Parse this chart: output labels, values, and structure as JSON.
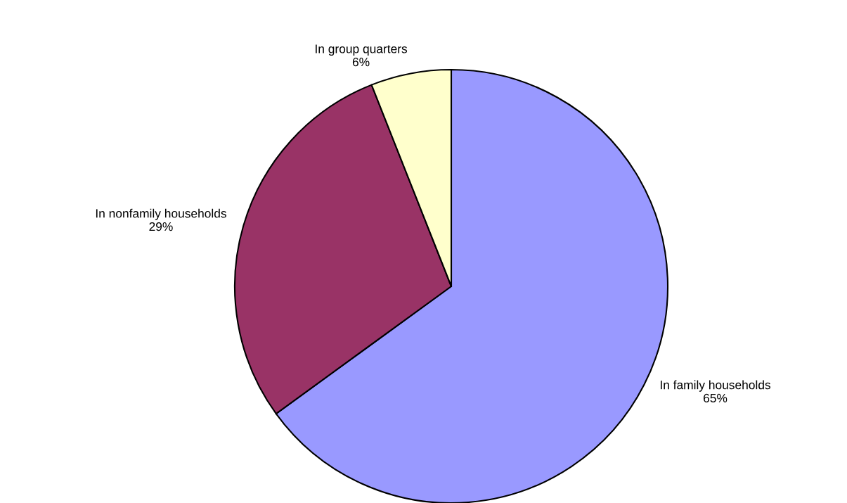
{
  "chart_data": {
    "type": "pie",
    "categories": [
      "In family households",
      "In nonfamily households",
      "In group quarters"
    ],
    "values": [
      65,
      29,
      6
    ],
    "value_labels": [
      "65%",
      "29%",
      "6%"
    ],
    "colors": [
      "#9999ff",
      "#993366",
      "#ffffcc"
    ],
    "legend": false
  }
}
